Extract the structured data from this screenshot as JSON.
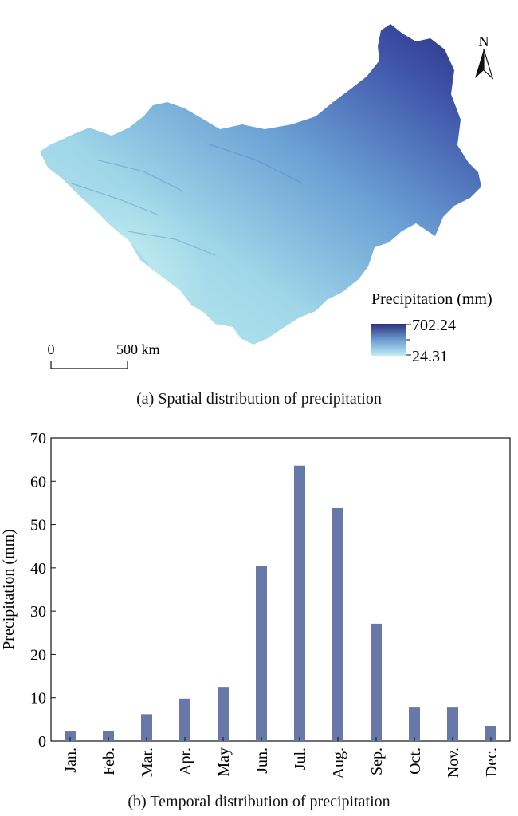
{
  "map": {
    "north_label": "N",
    "legend": {
      "title": "Precipitation (mm)",
      "max_label": "702.24",
      "min_label": "24.31",
      "color_high": "#2d2f7a",
      "color_low": "#bfeef2"
    },
    "scale_bar": {
      "start_label": "0",
      "end_label": "500 km"
    },
    "caption": "(a) Spatial distribution of precipitation"
  },
  "chart_data": {
    "type": "bar",
    "categories": [
      "Jan.",
      "Feb.",
      "Mar.",
      "Apr.",
      "May",
      "Jun.",
      "Jul.",
      "Aug.",
      "Sep.",
      "Oct.",
      "Nov.",
      "Dec."
    ],
    "values": [
      2.2,
      2.4,
      6.2,
      9.8,
      12.5,
      40.5,
      63.6,
      53.8,
      27.1,
      7.9,
      7.9,
      3.5
    ],
    "ylabel": "Precipitation (mm)",
    "xlabel": "",
    "ylim": [
      0,
      70
    ],
    "yticks": [
      0,
      10,
      20,
      30,
      40,
      50,
      60,
      70
    ],
    "bar_color": "#6878a8",
    "grid": false,
    "caption": "(b) Temporal distribution of precipitation"
  }
}
